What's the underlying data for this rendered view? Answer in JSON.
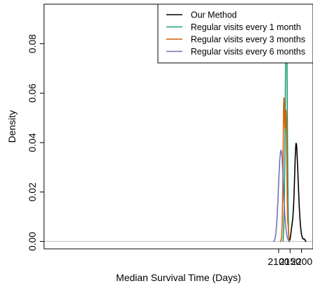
{
  "chart_data": {
    "type": "line",
    "title": "",
    "xlabel": "Median Survival Time (Days)",
    "ylabel": "Density",
    "xlim": [
      1075,
      2250
    ],
    "ylim": [
      -0.003,
      0.096
    ],
    "xticks": [
      2100,
      2150,
      2200
    ],
    "yticks": [
      0.0,
      0.02,
      0.04,
      0.06,
      0.08
    ],
    "xtick_labels": [
      "2100",
      "2150",
      "2200"
    ],
    "ytick_labels": [
      "0.00",
      "0.02",
      "0.04",
      "0.06",
      "0.08"
    ],
    "baseline": true,
    "legend_position": "top-right",
    "series": [
      {
        "name": "Our Method",
        "color": "#000000",
        "points": [
          [
            2146,
            0
          ],
          [
            2150,
            0.001
          ],
          [
            2153,
            0.003
          ],
          [
            2157,
            0.006
          ],
          [
            2160,
            0.008
          ],
          [
            2163,
            0.011
          ],
          [
            2166,
            0.016
          ],
          [
            2169,
            0.024
          ],
          [
            2172,
            0.033
          ],
          [
            2175,
            0.039
          ],
          [
            2177,
            0.0395
          ],
          [
            2179,
            0.038
          ],
          [
            2182,
            0.032
          ],
          [
            2186,
            0.023
          ],
          [
            2190,
            0.014
          ],
          [
            2194,
            0.008
          ],
          [
            2198,
            0.004
          ],
          [
            2202,
            0.002
          ],
          [
            2207,
            0.001
          ],
          [
            2212,
            0.001
          ],
          [
            2219,
            0
          ]
        ]
      },
      {
        "name": "Regular visits every 1 month",
        "color": "#1b9e77",
        "points": [
          [
            2119,
            0
          ],
          [
            2122,
            0.005
          ],
          [
            2125,
            0.018
          ],
          [
            2128,
            0.045
          ],
          [
            2130,
            0.068
          ],
          [
            2132,
            0.088
          ],
          [
            2133.5,
            0.092
          ],
          [
            2135,
            0.088
          ],
          [
            2137,
            0.065
          ],
          [
            2139,
            0.038
          ],
          [
            2141,
            0.016
          ],
          [
            2143,
            0.005
          ],
          [
            2145,
            0.001
          ],
          [
            2147,
            0
          ]
        ]
      },
      {
        "name": "Regular visits every 3 months",
        "color": "#d95f02",
        "points": [
          [
            2108,
            0
          ],
          [
            2113,
            0.002
          ],
          [
            2116,
            0.01
          ],
          [
            2119,
            0.03
          ],
          [
            2121,
            0.05
          ],
          [
            2123,
            0.058
          ],
          [
            2125,
            0.054
          ],
          [
            2127,
            0.046
          ],
          [
            2129,
            0.047
          ],
          [
            2131,
            0.053
          ],
          [
            2133,
            0.05
          ],
          [
            2135,
            0.036
          ],
          [
            2137,
            0.02
          ],
          [
            2139,
            0.009
          ],
          [
            2141,
            0.007
          ],
          [
            2143,
            0.004
          ],
          [
            2145,
            0.001
          ],
          [
            2147,
            0
          ]
        ]
      },
      {
        "name": "Regular visits every 6 months",
        "color": "#7570b3",
        "points": [
          [
            2079,
            0
          ],
          [
            2086,
            0.002
          ],
          [
            2092,
            0.008
          ],
          [
            2097,
            0.017
          ],
          [
            2101,
            0.026
          ],
          [
            2105,
            0.033
          ],
          [
            2109,
            0.0365
          ],
          [
            2112,
            0.0365
          ],
          [
            2115,
            0.034
          ],
          [
            2118,
            0.028
          ],
          [
            2122,
            0.019
          ],
          [
            2126,
            0.012
          ],
          [
            2130,
            0.007
          ],
          [
            2135,
            0.003
          ],
          [
            2140,
            0.001
          ],
          [
            2146,
            0
          ]
        ]
      }
    ]
  }
}
